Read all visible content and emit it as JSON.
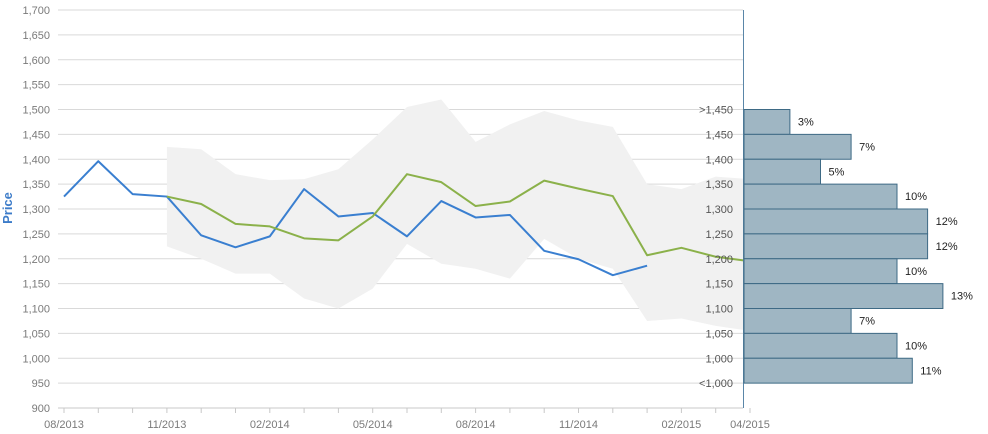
{
  "chart_data": {
    "type": "line",
    "ylabel": "Price",
    "ylim": [
      900,
      1700
    ],
    "y_ticks": [
      "900",
      "950",
      "1,000",
      "1,050",
      "1,100",
      "1,150",
      "1,200",
      "1,250",
      "1,300",
      "1,350",
      "1,400",
      "1,450",
      "1,500",
      "1,550",
      "1,600",
      "1,650",
      "1,700"
    ],
    "x_tick_labels": [
      "08/2013",
      "11/2013",
      "02/2014",
      "05/2014",
      "08/2014",
      "11/2014",
      "02/2015",
      "04/2015"
    ],
    "grid": true,
    "series": [
      {
        "color": "#3a7fd0",
        "points": [
          {
            "x": "2013-08",
            "y": 1325
          },
          {
            "x": "2013-09",
            "y": 1396
          },
          {
            "x": "2013-10",
            "y": 1330
          },
          {
            "x": "2013-11",
            "y": 1325
          },
          {
            "x": "2013-12",
            "y": 1247
          },
          {
            "x": "2014-01",
            "y": 1223
          },
          {
            "x": "2014-02",
            "y": 1245
          },
          {
            "x": "2014-03",
            "y": 1340
          },
          {
            "x": "2014-04",
            "y": 1285
          },
          {
            "x": "2014-05",
            "y": 1292
          },
          {
            "x": "2014-06",
            "y": 1245
          },
          {
            "x": "2014-07",
            "y": 1316
          },
          {
            "x": "2014-08",
            "y": 1283
          },
          {
            "x": "2014-09",
            "y": 1288
          },
          {
            "x": "2014-10",
            "y": 1216
          },
          {
            "x": "2014-11",
            "y": 1199
          },
          {
            "x": "2014-12",
            "y": 1167
          },
          {
            "x": "2015-01",
            "y": 1186
          }
        ]
      },
      {
        "color": "#8bb14a",
        "points": [
          {
            "x": "2013-11",
            "y": 1325
          },
          {
            "x": "2013-12",
            "y": 1310
          },
          {
            "x": "2014-01",
            "y": 1270
          },
          {
            "x": "2014-02",
            "y": 1265
          },
          {
            "x": "2014-03",
            "y": 1241
          },
          {
            "x": "2014-04",
            "y": 1237
          },
          {
            "x": "2014-05",
            "y": 1285
          },
          {
            "x": "2014-06",
            "y": 1370
          },
          {
            "x": "2014-07",
            "y": 1354
          },
          {
            "x": "2014-08",
            "y": 1306
          },
          {
            "x": "2014-09",
            "y": 1315
          },
          {
            "x": "2014-10",
            "y": 1357
          },
          {
            "x": "2014-11",
            "y": 1341
          },
          {
            "x": "2014-12",
            "y": 1326
          },
          {
            "x": "2015-01",
            "y": 1207
          },
          {
            "x": "2015-02",
            "y": 1222
          },
          {
            "x": "2015-03",
            "y": 1204
          },
          {
            "x": "2015-04",
            "y": 1195
          }
        ]
      }
    ],
    "band": {
      "color": "#f1f1f1",
      "points": [
        {
          "x": "2013-11",
          "low": 1225,
          "high": 1425
        },
        {
          "x": "2013-12",
          "low": 1200,
          "high": 1420
        },
        {
          "x": "2014-01",
          "low": 1170,
          "high": 1370
        },
        {
          "x": "2014-02",
          "low": 1170,
          "high": 1358
        },
        {
          "x": "2014-03",
          "low": 1120,
          "high": 1360
        },
        {
          "x": "2014-04",
          "low": 1100,
          "high": 1380
        },
        {
          "x": "2014-05",
          "low": 1140,
          "high": 1440
        },
        {
          "x": "2014-06",
          "low": 1230,
          "high": 1505
        },
        {
          "x": "2014-07",
          "low": 1190,
          "high": 1520
        },
        {
          "x": "2014-08",
          "low": 1180,
          "high": 1435
        },
        {
          "x": "2014-09",
          "low": 1160,
          "high": 1470
        },
        {
          "x": "2014-10",
          "low": 1240,
          "high": 1497
        },
        {
          "x": "2014-11",
          "low": 1200,
          "high": 1478
        },
        {
          "x": "2014-12",
          "low": 1180,
          "high": 1465
        },
        {
          "x": "2015-01",
          "low": 1075,
          "high": 1350
        },
        {
          "x": "2015-02",
          "low": 1080,
          "high": 1340
        },
        {
          "x": "2015-03",
          "low": 1065,
          "high": 1365
        },
        {
          "x": "2015-04",
          "low": 1055,
          "high": 1360
        }
      ]
    },
    "histogram": {
      "color": "#9fb6c3",
      "bins": [
        {
          "label": ">1,450",
          "y": 1450,
          "percent": 3,
          "text": "3%"
        },
        {
          "label": "1,450",
          "y": 1400,
          "percent": 7,
          "text": "7%"
        },
        {
          "label": "1,400",
          "y": 1350,
          "percent": 5,
          "text": "5%"
        },
        {
          "label": "1,350",
          "y": 1300,
          "percent": 10,
          "text": "10%"
        },
        {
          "label": "1,300",
          "y": 1250,
          "percent": 12,
          "text": "12%"
        },
        {
          "label": "1,250",
          "y": 1200,
          "percent": 12,
          "text": "12%"
        },
        {
          "label": "1,200",
          "y": 1150,
          "percent": 10,
          "text": "10%"
        },
        {
          "label": "1,150",
          "y": 1100,
          "percent": 13,
          "text": "13%"
        },
        {
          "label": "1,100",
          "y": 1050,
          "percent": 7,
          "text": "7%"
        },
        {
          "label": "1,050",
          "y": 1000,
          "percent": 10,
          "text": "10%"
        },
        {
          "label": "1,000",
          "y": 950,
          "percent": 11,
          "text": "11%"
        }
      ],
      "bottom_label": "<1,000"
    }
  }
}
